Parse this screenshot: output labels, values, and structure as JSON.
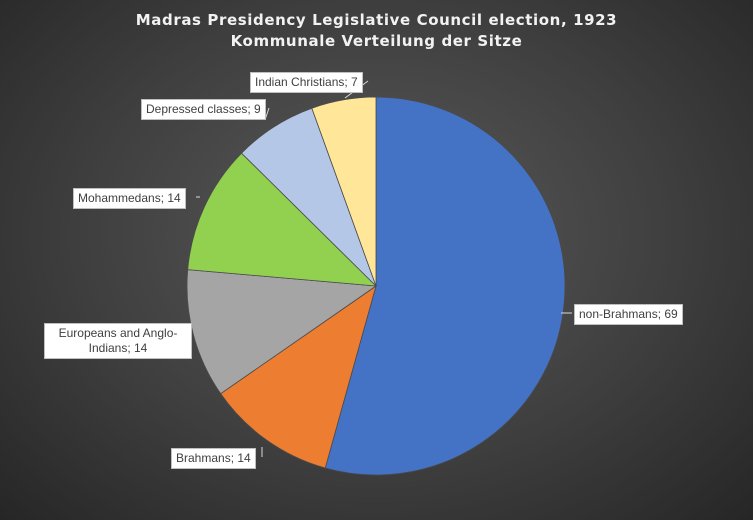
{
  "chart_data": {
    "type": "pie",
    "title": "Madras Presidency Legislative Council election, 1923",
    "subtitle": "Kommunale Verteilung der Sitze",
    "start_angle_deg": 0,
    "direction": "clockwise",
    "slices": [
      {
        "label": "non-Brahmans",
        "value": 69,
        "data_label": "non-Brahmans; 69",
        "color": "#4472c4"
      },
      {
        "label": "Brahmans",
        "value": 14,
        "data_label": "Brahmans; 14",
        "color": "#ed7d31"
      },
      {
        "label": "Europeans and Anglo-Indians",
        "value": 14,
        "data_label": "Europeans and Anglo-Indians; 14",
        "color": "#a5a5a5"
      },
      {
        "label": "Mohammedans",
        "value": 14,
        "data_label": "Mohammedans; 14",
        "color": "#92d050"
      },
      {
        "label": "Depressed classes",
        "value": 9,
        "data_label": "Depressed classes; 9",
        "color": "#b4c7e7"
      },
      {
        "label": "Indian Christians",
        "value": 7,
        "data_label": "Indian Christians; 7",
        "color": "#ffe699"
      }
    ],
    "legend": "none",
    "data_labels": "callout"
  }
}
